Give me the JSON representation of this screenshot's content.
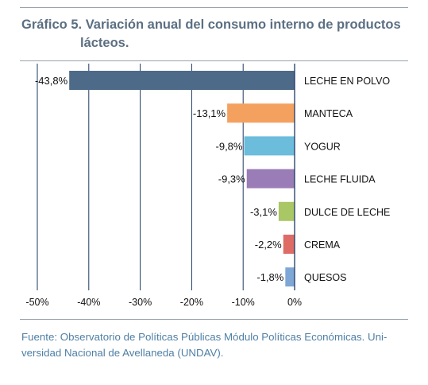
{
  "title": {
    "line1": "Gráfico 5. Variación anual del consumo interno de productos",
    "line2": "lácteos."
  },
  "source": {
    "line1": "Fuente: Observatorio de Políticas Públicas Módulo Políticas Económicas. Uni-",
    "line2": "versidad Nacional de Avellaneda (UNDAV)."
  },
  "chart_data": {
    "type": "bar",
    "orientation": "horizontal",
    "categories": [
      "LECHE EN POLVO",
      "MANTECA",
      "YOGUR",
      "LECHE FLUIDA",
      "DULCE DE LECHE",
      "CREMA",
      "QUESOS"
    ],
    "values": [
      -43.8,
      -13.1,
      -9.8,
      -9.3,
      -3.1,
      -2.2,
      -1.8
    ],
    "value_labels": [
      "-43,8%",
      "-13,1%",
      "-9,8%",
      "-9,3%",
      "-3,1%",
      "-2,2%",
      "-1,8%"
    ],
    "bar_colors": [
      "#4e6a89",
      "#f4a160",
      "#6cbcdb",
      "#9a7cb6",
      "#a9c764",
      "#de6b66",
      "#7ea7d6"
    ],
    "xlim": [
      -50,
      0
    ],
    "xticks": [
      -50,
      -40,
      -30,
      -20,
      -10,
      0
    ],
    "xtick_labels": [
      "-50%",
      "-40%",
      "-30%",
      "-20%",
      "-10%",
      "0%"
    ],
    "grid": "vertical",
    "gridline_color": "#1f3a63"
  }
}
